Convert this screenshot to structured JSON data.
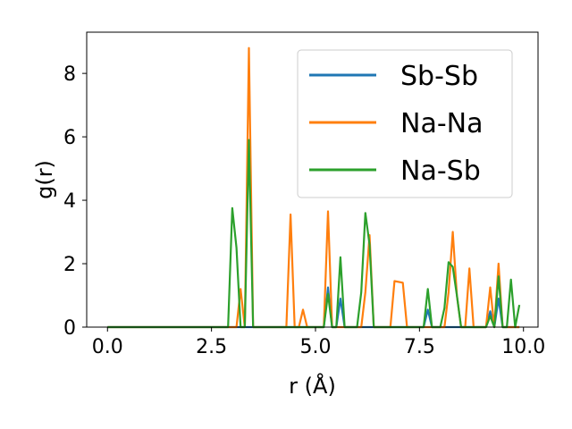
{
  "chart_data": {
    "type": "line",
    "title": "",
    "xlabel": "r (Å)",
    "ylabel": "g(r)",
    "xlim": [
      -0.5,
      10.35
    ],
    "ylim": [
      0,
      9.3
    ],
    "xticks": [
      0.0,
      2.5,
      5.0,
      7.5,
      10.0
    ],
    "xtick_labels": [
      "0.0",
      "2.5",
      "5.0",
      "7.5",
      "10.0"
    ],
    "yticks": [
      0,
      2,
      4,
      6,
      8
    ],
    "ytick_labels": [
      "0",
      "2",
      "4",
      "6",
      "8"
    ],
    "grid": false,
    "legend_position": "top-right",
    "series": [
      {
        "name": "Sb-Sb",
        "color": "#1f77b4",
        "x": [
          0.0,
          5.2,
          5.3,
          5.4,
          5.5,
          5.6,
          5.7,
          7.6,
          7.7,
          7.8,
          9.1,
          9.2,
          9.3,
          9.4,
          9.5,
          9.9
        ],
        "y": [
          0,
          0,
          1.25,
          0,
          0,
          0.9,
          0,
          0,
          0.55,
          0,
          0,
          0.5,
          0,
          0.9,
          0,
          0
        ]
      },
      {
        "name": "Na-Na",
        "color": "#ff7f0e",
        "x": [
          0.0,
          3.1,
          3.2,
          3.3,
          3.4,
          3.5,
          4.3,
          4.4,
          4.5,
          4.6,
          4.7,
          4.8,
          5.2,
          5.3,
          5.4,
          6.1,
          6.2,
          6.3,
          6.4,
          6.8,
          6.9,
          7.1,
          7.2,
          8.1,
          8.2,
          8.3,
          8.4,
          8.5,
          8.6,
          8.7,
          8.8,
          9.1,
          9.2,
          9.3,
          9.4,
          9.5,
          9.9
        ],
        "y": [
          0,
          0,
          1.2,
          0,
          8.8,
          0,
          0,
          3.55,
          0,
          0,
          0.55,
          0,
          0,
          3.65,
          0,
          0,
          1.1,
          2.9,
          0,
          0,
          1.45,
          1.4,
          0,
          0,
          1.1,
          3.0,
          1.0,
          0,
          0,
          1.85,
          0,
          0,
          1.25,
          0,
          2.0,
          0,
          0
        ]
      },
      {
        "name": "Na-Sb",
        "color": "#2ca02c",
        "x": [
          0.0,
          2.9,
          3.0,
          3.1,
          3.2,
          3.3,
          3.4,
          3.5,
          5.2,
          5.3,
          5.4,
          5.5,
          5.6,
          5.7,
          6.0,
          6.1,
          6.2,
          6.3,
          6.4,
          7.6,
          7.7,
          7.8,
          8.0,
          8.1,
          8.2,
          8.3,
          8.4,
          8.5,
          9.0,
          9.1,
          9.2,
          9.3,
          9.4,
          9.5,
          9.6,
          9.7,
          9.8,
          9.9
        ],
        "y": [
          0,
          0,
          3.75,
          2.5,
          0,
          0,
          5.9,
          0,
          0,
          1.05,
          0,
          0,
          2.2,
          0,
          0,
          1.1,
          3.6,
          2.6,
          0,
          0,
          1.2,
          0,
          0,
          0.6,
          2.05,
          1.9,
          1.0,
          0,
          0,
          0,
          0.35,
          0,
          1.6,
          0,
          0,
          1.5,
          0,
          0.7
        ]
      }
    ]
  }
}
